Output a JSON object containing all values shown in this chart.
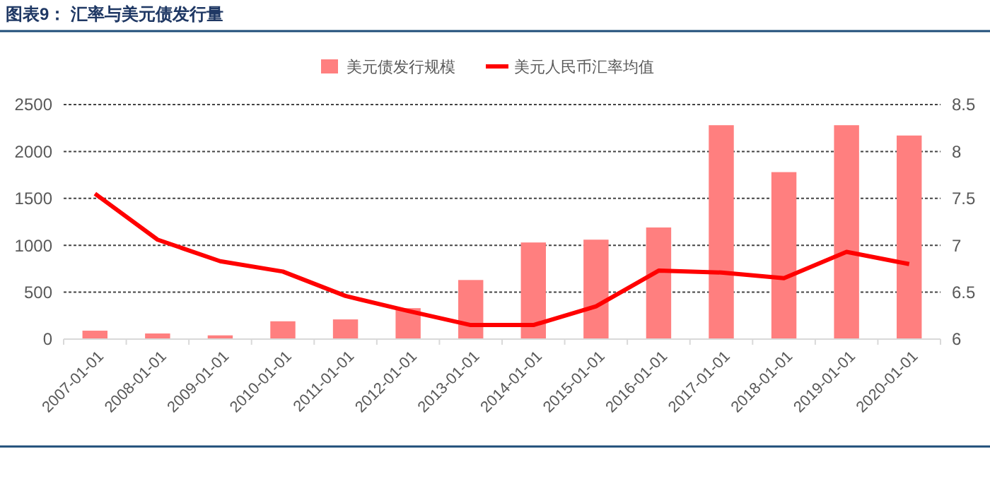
{
  "chart_data": {
    "type": "bar",
    "title": "图表9： 汇率与美元债发行量",
    "categories": [
      "2007-01-01",
      "2008-01-01",
      "2009-01-01",
      "2010-01-01",
      "2011-01-01",
      "2012-01-01",
      "2013-01-01",
      "2014-01-01",
      "2015-01-01",
      "2016-01-01",
      "2017-01-01",
      "2018-01-01",
      "2019-01-01",
      "2020-01-01"
    ],
    "series": [
      {
        "name": "美元债发行规模",
        "color": "#ff7f7f",
        "values": [
          90,
          60,
          40,
          190,
          210,
          330,
          630,
          1030,
          1060,
          1190,
          2280,
          1780,
          2280,
          2170
        ]
      },
      {
        "name": "美元人民币汇率均值",
        "type": "line",
        "axis": "y2",
        "color": "#ff0000",
        "values": [
          7.55,
          7.06,
          6.83,
          6.72,
          6.46,
          6.3,
          6.15,
          6.15,
          6.35,
          6.73,
          6.71,
          6.65,
          6.93,
          6.8
        ]
      }
    ],
    "ylim": [
      0,
      2500
    ],
    "yticks": [
      0,
      500,
      1000,
      1500,
      2000,
      2500
    ],
    "y2lim": [
      6,
      8.5
    ],
    "y2ticks": [
      6,
      6.5,
      7,
      7.5,
      8,
      8.5
    ],
    "grid": "y",
    "legend": "top",
    "marker": "none",
    "line_style": "solid"
  }
}
